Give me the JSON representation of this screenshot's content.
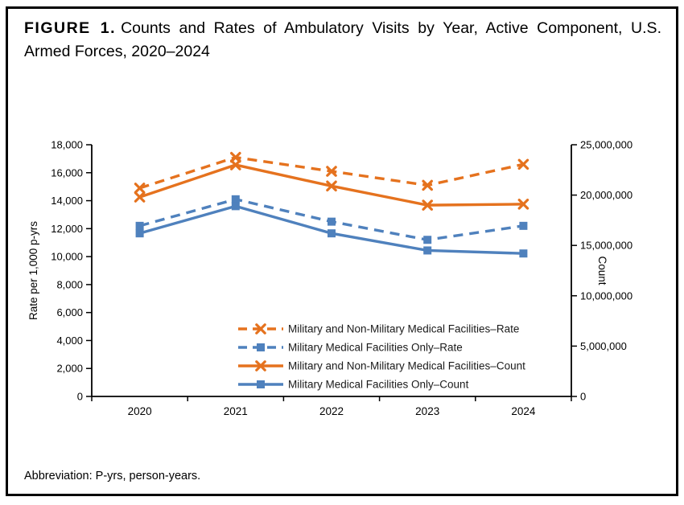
{
  "figure": {
    "label": "FIGURE 1.",
    "title_line1": "Counts and Rates of Ambulatory Visits by Year, Active Component, U.S.",
    "title_line2": "Armed Forces, 2020–2024",
    "full_title": "FIGURE 1. Counts and Rates of Ambulatory Visits by Year, Active Component, U.S. Armed Forces, 2020–2024"
  },
  "footnote": "Abbreviation: P-yrs, person-years.",
  "colors": {
    "orange": "#E5721E",
    "blue": "#4F81BD",
    "axis": "#000000",
    "legend_text": "#1a1a1a"
  },
  "chart_data": {
    "type": "line",
    "categories": [
      "2020",
      "2021",
      "2022",
      "2023",
      "2024"
    ],
    "left_axis": {
      "label": "Rate per 1,000 p-yrs",
      "min": 0,
      "max": 18000,
      "step": 2000
    },
    "right_axis": {
      "label": "Count",
      "min": 0,
      "max": 25000000,
      "step": 5000000
    },
    "grid": false,
    "legend_position": "inside-bottom-right",
    "series": [
      {
        "name": "Military and Non-Military Medical Facilities–Rate",
        "axis": "left",
        "color": "#E5721E",
        "dash": true,
        "marker": "x",
        "values": [
          14900,
          17100,
          16100,
          15100,
          16600
        ]
      },
      {
        "name": "Military Medical Facilities Only–Rate",
        "axis": "left",
        "color": "#4F81BD",
        "dash": true,
        "marker": "square",
        "values": [
          12200,
          14100,
          12500,
          11200,
          12200
        ]
      },
      {
        "name": "Military and Non-Military Medical Facilities–Count",
        "axis": "right",
        "color": "#E5721E",
        "dash": false,
        "marker": "x",
        "values": [
          19800000,
          23000000,
          20900000,
          19000000,
          19100000
        ]
      },
      {
        "name": "Military Medical Facilities Only–Count",
        "axis": "right",
        "color": "#4F81BD",
        "dash": false,
        "marker": "square",
        "values": [
          16200000,
          18900000,
          16200000,
          14500000,
          14200000
        ]
      }
    ]
  }
}
